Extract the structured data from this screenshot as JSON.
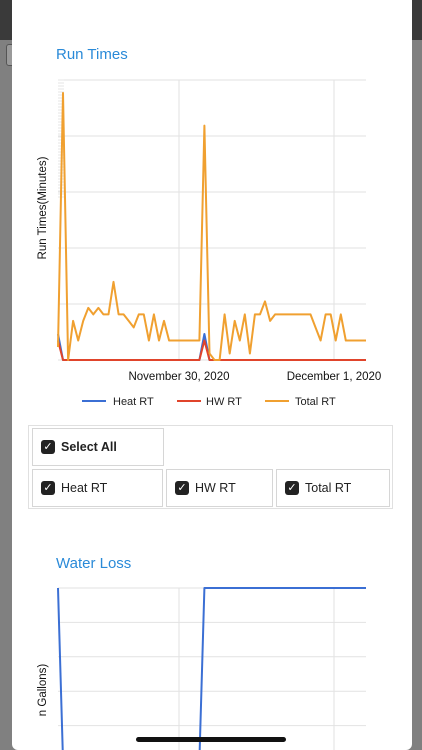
{
  "run_times": {
    "title": "Run Times",
    "chart_data": {
      "type": "line",
      "ylabel": "Run Times(Minutes)",
      "x_tick_labels": [
        "November 30, 2020",
        "December 1, 2020"
      ],
      "grid": true,
      "legend_placement": "bottom",
      "series": [
        {
          "name": "Heat RT",
          "color": "#3b6fd4",
          "values": [
            0.4,
            0,
            0,
            0,
            0,
            0,
            0,
            0,
            0,
            0,
            0,
            0,
            0,
            0,
            0,
            0,
            0,
            0,
            0,
            0,
            0,
            0,
            0,
            0,
            0,
            0,
            0,
            0,
            0,
            0.4,
            0,
            0,
            0,
            0,
            0,
            0,
            0,
            0,
            0,
            0,
            0,
            0,
            0,
            0,
            0,
            0,
            0,
            0,
            0,
            0,
            0,
            0,
            0,
            0,
            0,
            0,
            0,
            0,
            0,
            0,
            0,
            0
          ]
        },
        {
          "name": "HW RT",
          "color": "#e0442b",
          "values": [
            0.3,
            0,
            0,
            0,
            0,
            0,
            0,
            0,
            0,
            0,
            0,
            0,
            0,
            0,
            0,
            0,
            0,
            0,
            0,
            0,
            0,
            0,
            0,
            0,
            0,
            0,
            0,
            0,
            0,
            0.3,
            0,
            0,
            0,
            0,
            0,
            0,
            0,
            0,
            0,
            0,
            0,
            0,
            0,
            0,
            0,
            0,
            0,
            0,
            0,
            0,
            0,
            0,
            0,
            0,
            0,
            0,
            0,
            0,
            0,
            0,
            0,
            0
          ]
        },
        {
          "name": "Total RT",
          "color": "#f0a030",
          "values": [
            0.2,
            4.1,
            0,
            0.6,
            0.3,
            0.6,
            0.8,
            0.7,
            0.8,
            0.7,
            0.7,
            1.2,
            0.7,
            0.7,
            0.6,
            0.5,
            0.7,
            0.7,
            0.3,
            0.7,
            0.3,
            0.6,
            0.3,
            0.3,
            0.3,
            0.3,
            0.3,
            0.3,
            0.3,
            3.6,
            0.1,
            0,
            0,
            0.7,
            0.1,
            0.6,
            0.3,
            0.7,
            0.1,
            0.7,
            0.7,
            0.9,
            0.6,
            0.7,
            0.7,
            0.7,
            0.7,
            0.7,
            0.7,
            0.7,
            0.7,
            0.5,
            0.3,
            0.7,
            0.7,
            0.3,
            0.7,
            0.3,
            0.3,
            0.3,
            0.3,
            0.3
          ]
        }
      ],
      "ylim": [
        0,
        4.3
      ]
    }
  },
  "select": {
    "all_label": "Select All",
    "items": [
      "Heat RT",
      "HW RT",
      "Total RT"
    ],
    "check_glyph": "✓"
  },
  "water_loss": {
    "title": "Water Loss",
    "chart_data": {
      "type": "line",
      "ylabel": "n Gallons)",
      "grid": true,
      "series": [
        {
          "color": "#3b6fd4",
          "values": [
            1,
            0,
            0,
            0,
            0,
            0,
            0,
            0,
            0,
            0,
            0,
            0,
            0,
            0,
            0,
            0,
            0,
            0,
            0,
            0,
            0,
            0,
            0,
            0,
            0,
            0,
            0,
            0,
            0,
            1,
            1,
            1,
            1,
            1,
            1,
            1,
            1,
            1,
            1,
            1,
            1,
            1,
            1,
            1,
            1,
            1,
            1,
            1,
            1,
            1,
            1,
            1,
            1,
            1,
            1,
            1,
            1,
            1,
            1,
            1,
            1,
            1
          ]
        }
      ],
      "ylim": [
        0,
        1
      ]
    }
  }
}
